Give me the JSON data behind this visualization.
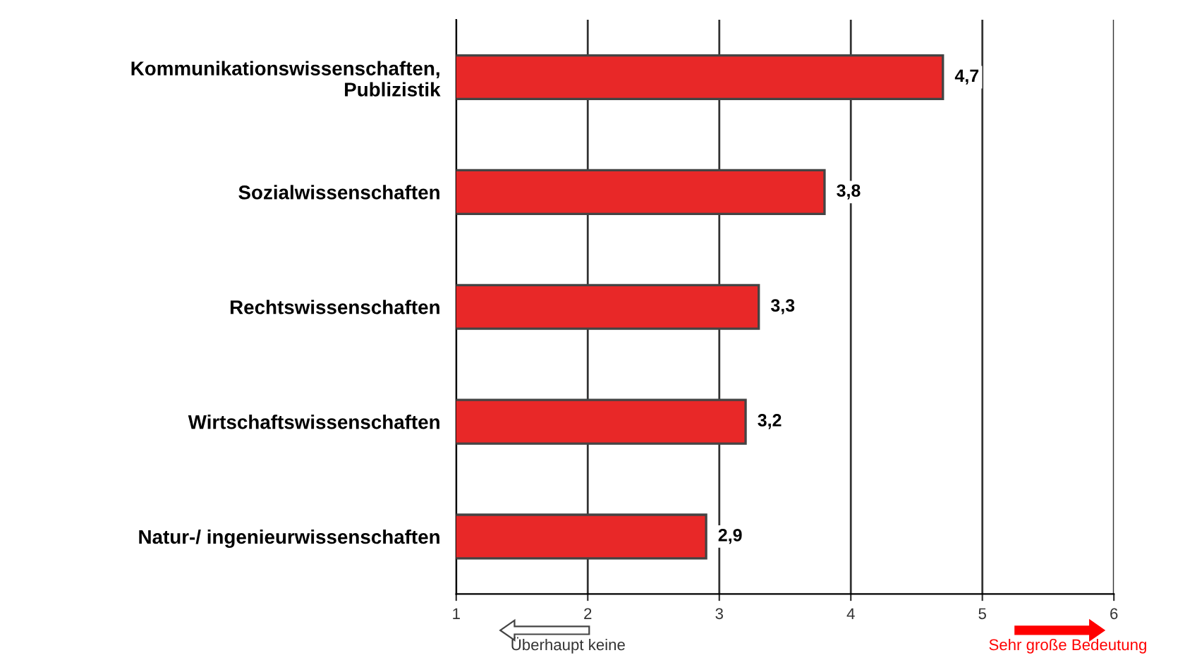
{
  "chart_data": {
    "type": "bar",
    "orientation": "horizontal",
    "categories": [
      "Kommunikationswissenschaften,\nPublizistik",
      "Sozialwissenschaften",
      "Rechtswissenschaften",
      "Wirtschaftswissenschaften",
      "Natur-/ ingenieurwissenschaften"
    ],
    "values": [
      4.7,
      3.8,
      3.3,
      3.2,
      2.9
    ],
    "value_labels": [
      "4,7",
      "3,8",
      "3,3",
      "3,2",
      "2,9"
    ],
    "color": "#e82828",
    "xlim": [
      1,
      6
    ],
    "xticks": [
      1,
      2,
      3,
      4,
      5,
      6
    ],
    "grid": "x",
    "annotations": [
      "Überhaupt keine",
      "Sehr große Bedeutung"
    ]
  }
}
